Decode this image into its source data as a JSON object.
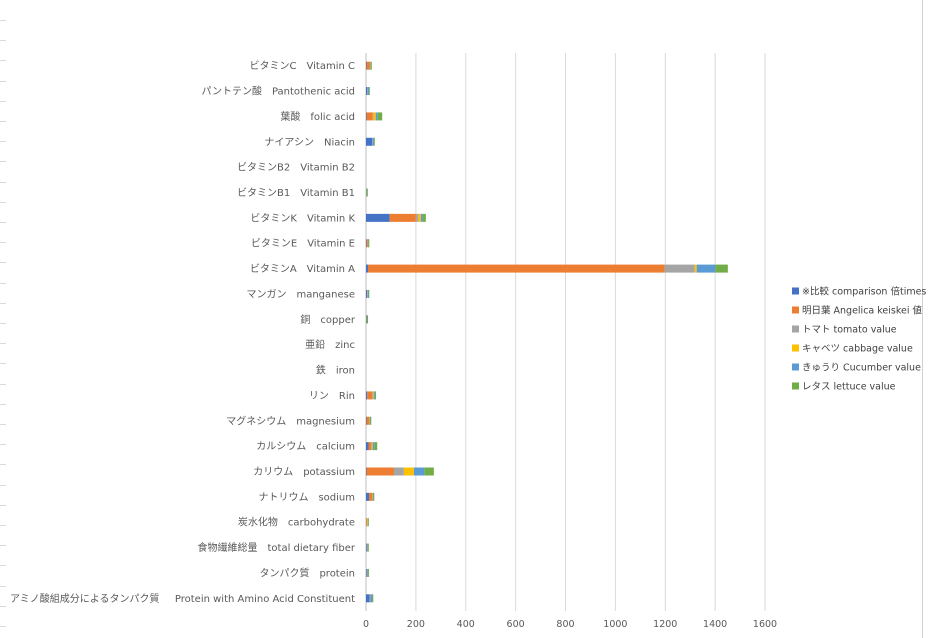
{
  "chart_data": {
    "type": "bar",
    "orientation": "horizontal",
    "stacked": true,
    "title": "",
    "xlabel": "",
    "ylabel": "",
    "xlim": [
      0,
      1600
    ],
    "x_ticks": [
      0,
      200,
      400,
      600,
      800,
      1000,
      1200,
      1400,
      1600
    ],
    "grid": true,
    "legend_position": "right",
    "categories": [
      "ビタミンC　Vitamin C",
      "パントテン酸　Pantothenic acid",
      "葉酸　folic acid",
      "ナイアシン　Niacin",
      "ビタミンB2　Vitamin B2",
      "ビタミンB1　Vitamin B1",
      "ビタミンK　Vitamin K",
      "ビタミンE　Vitamin E",
      "ビタミンA　Vitamin A",
      "マンガン　manganese",
      "銅　copper",
      "亜鉛　zinc",
      "鉄　iron",
      "リン　Rin",
      "マグネシウム　magnesium",
      "カルシウム　calcium",
      "カリウム　potassium",
      "ナトリウム　sodium",
      "炭水化物　carbohydrate",
      "食物繊維総量　total dietary fiber",
      "タンパク質　protein",
      "アミノ酸組成分によるタンパク質　Protein with Amino Acid Constituent"
    ],
    "series": [
      {
        "name": "※比較 comparison 倍times",
        "color": "#4472c4",
        "values": [
          2,
          5,
          2,
          25,
          0,
          1,
          95,
          2,
          8,
          5,
          2,
          0,
          0,
          5,
          2,
          10,
          2,
          12,
          0,
          3,
          3,
          15
        ]
      },
      {
        "name": "明日葉 Angelica keiskei 値　v",
        "color": "#ed7d31",
        "values": [
          12,
          0,
          25,
          0,
          0,
          0,
          105,
          5,
          1190,
          0,
          0,
          0,
          0,
          20,
          10,
          10,
          110,
          12,
          2,
          0,
          0,
          0
        ]
      },
      {
        "name": "トマト tomato value",
        "color": "#a5a5a5",
        "values": [
          2,
          2,
          2,
          2,
          0,
          1,
          10,
          1,
          120,
          2,
          1,
          0,
          0,
          5,
          2,
          2,
          40,
          2,
          2,
          2,
          2,
          2
        ]
      },
      {
        "name": "キャベツ cabbage value",
        "color": "#ffc000",
        "values": [
          2,
          0,
          10,
          0,
          0,
          1,
          10,
          1,
          8,
          1,
          1,
          0,
          0,
          2,
          2,
          5,
          40,
          2,
          3,
          1,
          1,
          1
        ]
      },
      {
        "name": "きゅうり Cucumber value",
        "color": "#5b9bd5",
        "values": [
          2,
          5,
          8,
          5,
          0,
          1,
          8,
          1,
          75,
          2,
          1,
          0,
          0,
          3,
          2,
          8,
          42,
          2,
          1,
          2,
          3,
          8
        ]
      },
      {
        "name": "レタス lettuce value",
        "color": "#70ad47",
        "values": [
          2,
          2,
          18,
          1,
          0,
          2,
          12,
          2,
          50,
          1,
          1,
          0,
          0,
          5,
          2,
          10,
          38,
          2,
          1,
          1,
          1,
          1
        ]
      }
    ]
  }
}
